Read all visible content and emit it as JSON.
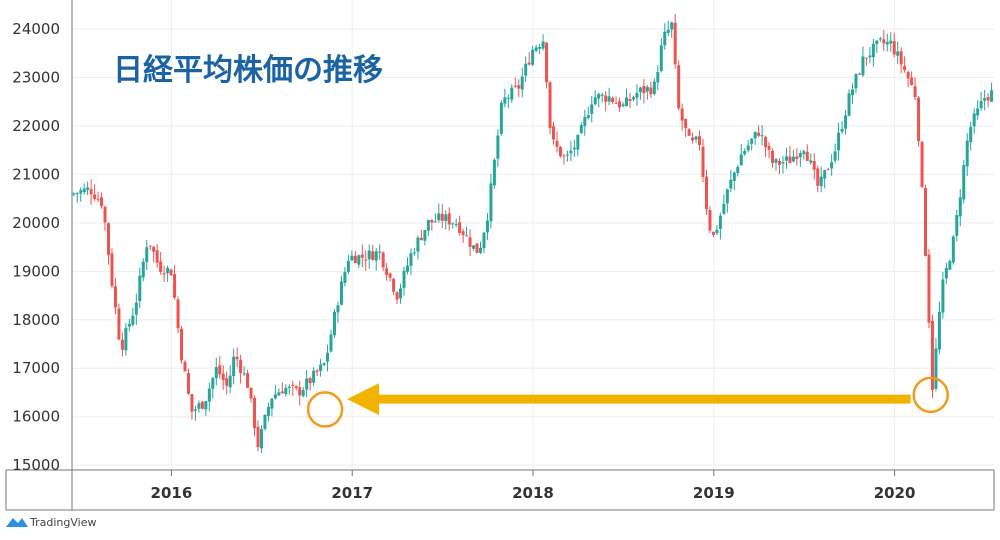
{
  "chart_data": {
    "type": "candlestick",
    "title": "日経平均株価の推移",
    "ylim": [
      14900,
      24600
    ],
    "yticks": [
      15000,
      16000,
      17000,
      18000,
      19000,
      20000,
      21000,
      22000,
      23000,
      24000
    ],
    "xticks": [
      "2016",
      "2017",
      "2018",
      "2019",
      "2020"
    ],
    "xlim": [
      2015.45,
      2020.55
    ],
    "grid": true,
    "colors": {
      "up": "#26a69a",
      "down": "#ef5350",
      "accent": "#f2b300",
      "circle": "#f29a1a",
      "title": "#1b63a5"
    },
    "annotation": {
      "type": "arrow",
      "from": {
        "x": 2020.2,
        "y": 16300
      },
      "to": {
        "x": 2016.85,
        "y": 16300
      },
      "circles": [
        {
          "x": 2016.85,
          "y": 16150
        },
        {
          "x": 2020.2,
          "y": 16450
        }
      ]
    },
    "anchors": [
      [
        2015.45,
        20600
      ],
      [
        2015.55,
        20700
      ],
      [
        2015.62,
        20400
      ],
      [
        2015.67,
        18800
      ],
      [
        2015.72,
        17400
      ],
      [
        2015.8,
        18300
      ],
      [
        2015.87,
        19700
      ],
      [
        2015.93,
        19100
      ],
      [
        2016.0,
        19000
      ],
      [
        2016.05,
        17400
      ],
      [
        2016.11,
        16100
      ],
      [
        2016.18,
        16300
      ],
      [
        2016.25,
        17000
      ],
      [
        2016.31,
        16600
      ],
      [
        2016.35,
        17300
      ],
      [
        2016.42,
        16700
      ],
      [
        2016.48,
        15400
      ],
      [
        2016.55,
        16400
      ],
      [
        2016.62,
        16600
      ],
      [
        2016.7,
        16500
      ],
      [
        2016.78,
        16800
      ],
      [
        2016.85,
        17100
      ],
      [
        2016.92,
        18400
      ],
      [
        2016.98,
        19300
      ],
      [
        2017.06,
        19300
      ],
      [
        2017.15,
        19400
      ],
      [
        2017.25,
        18500
      ],
      [
        2017.33,
        19400
      ],
      [
        2017.42,
        20000
      ],
      [
        2017.5,
        20100
      ],
      [
        2017.58,
        20000
      ],
      [
        2017.67,
        19500
      ],
      [
        2017.7,
        19400
      ],
      [
        2017.75,
        20200
      ],
      [
        2017.83,
        22500
      ],
      [
        2017.92,
        22800
      ],
      [
        2018.0,
        23600
      ],
      [
        2018.06,
        23800
      ],
      [
        2018.1,
        21700
      ],
      [
        2018.18,
        21300
      ],
      [
        2018.25,
        21700
      ],
      [
        2018.33,
        22600
      ],
      [
        2018.42,
        22600
      ],
      [
        2018.5,
        22400
      ],
      [
        2018.58,
        22700
      ],
      [
        2018.67,
        22800
      ],
      [
        2018.72,
        23800
      ],
      [
        2018.77,
        24100
      ],
      [
        2018.8,
        22400
      ],
      [
        2018.87,
        21600
      ],
      [
        2018.92,
        21700
      ],
      [
        2018.97,
        20000
      ],
      [
        2019.0,
        19700
      ],
      [
        2019.08,
        20700
      ],
      [
        2019.15,
        21400
      ],
      [
        2019.25,
        21900
      ],
      [
        2019.33,
        21200
      ],
      [
        2019.42,
        21300
      ],
      [
        2019.5,
        21600
      ],
      [
        2019.58,
        20700
      ],
      [
        2019.67,
        21500
      ],
      [
        2019.75,
        22600
      ],
      [
        2019.83,
        23400
      ],
      [
        2019.92,
        23700
      ],
      [
        2019.98,
        23700
      ],
      [
        2020.05,
        23200
      ],
      [
        2020.12,
        22600
      ],
      [
        2020.17,
        19500
      ],
      [
        2020.21,
        16600
      ],
      [
        2020.26,
        18600
      ],
      [
        2020.33,
        19700
      ],
      [
        2020.41,
        21900
      ],
      [
        2020.5,
        22600
      ],
      [
        2020.55,
        22700
      ]
    ]
  },
  "branding": {
    "label": "TradingView",
    "icon": "tradingview-logo-icon"
  }
}
